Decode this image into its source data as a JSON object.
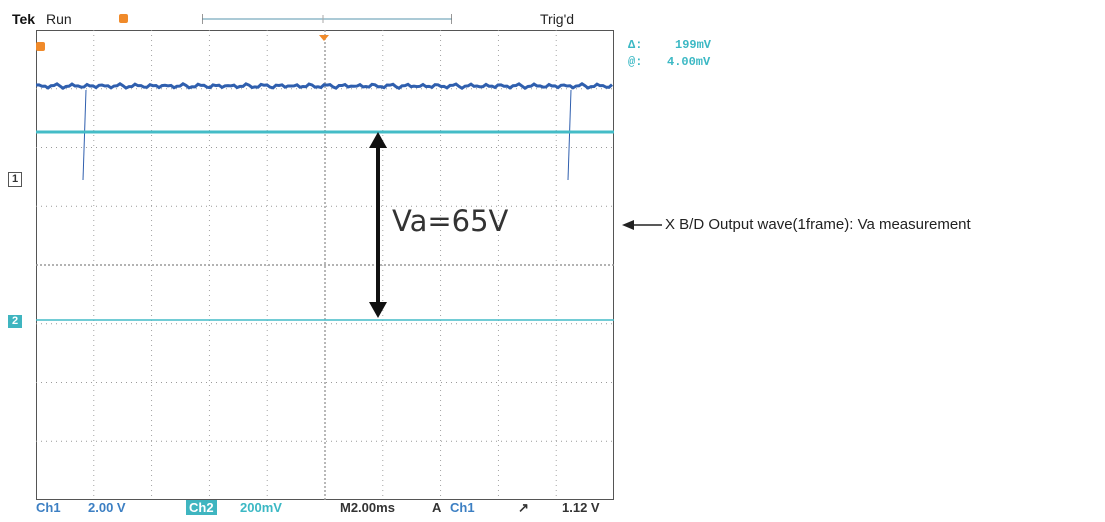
{
  "header": {
    "brand": "Tek",
    "state": "Run",
    "trigger_status": "Trig'd"
  },
  "measurements": {
    "a_symbol": "Δ:",
    "a_value": "199mV",
    "b_symbol": "@:",
    "b_value": "4.00mV"
  },
  "channel_markers": {
    "ch1": "1",
    "ch2": "2"
  },
  "annotation": {
    "va_label": "Va=65V",
    "note": "X B/D Output wave(1frame): Va measurement"
  },
  "footer": {
    "ch1_label": "Ch1",
    "ch1_scale": "2.00 V",
    "ch2_label": "Ch2",
    "ch2_scale": "200mV",
    "timebase": "M2.00ms",
    "trigger_mode": "A",
    "trigger_source": "Ch1",
    "trigger_slope": "↗",
    "trigger_level": "1.12 V"
  },
  "colors": {
    "ch1_trace": "#2f5fae",
    "ch2_trace": "#44bcc7",
    "grid": "#9a9a9a",
    "arrow": "#111111"
  }
}
